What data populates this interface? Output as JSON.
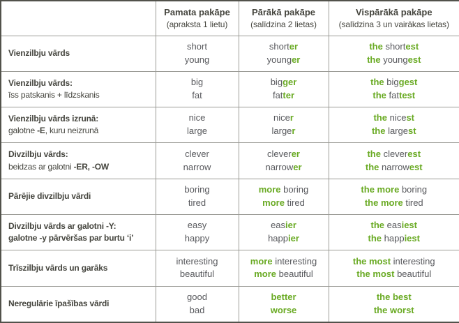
{
  "colors": {
    "green": "#69aa23",
    "label_text": "#45453e",
    "value_text": "#57585c",
    "border_outer": "#52524b",
    "border_inner": "#9b9b96",
    "background": "#ffffff"
  },
  "header": {
    "corner": "",
    "columns": [
      {
        "title": "Pamata pakāpe",
        "subtitle": "(apraksta 1 lietu)"
      },
      {
        "title": "Pārākā pakāpe",
        "subtitle": "(salīdzina 2 lietas)"
      },
      {
        "title": "Vispārākā pakāpe",
        "subtitle": "(salīdzina 3 un vairākas lietas)"
      }
    ]
  },
  "rows": [
    {
      "label_lines": [
        [
          {
            "t": "Vienzilbju vārds",
            "b": true
          }
        ]
      ],
      "cells": [
        [
          [
            {
              "t": "short"
            }
          ],
          [
            {
              "t": "young"
            }
          ]
        ],
        [
          [
            {
              "t": "short"
            },
            {
              "t": "er",
              "g": true
            }
          ],
          [
            {
              "t": "young"
            },
            {
              "t": "er",
              "g": true
            }
          ]
        ],
        [
          [
            {
              "t": "the ",
              "g": true
            },
            {
              "t": "short"
            },
            {
              "t": "est",
              "g": true
            }
          ],
          [
            {
              "t": "the ",
              "g": true
            },
            {
              "t": "young"
            },
            {
              "t": "est",
              "g": true
            }
          ]
        ]
      ]
    },
    {
      "label_lines": [
        [
          {
            "t": "Vienzilbju vārds:",
            "b": true
          }
        ],
        [
          {
            "t": "īss patskanis + līdzskanis"
          }
        ]
      ],
      "cells": [
        [
          [
            {
              "t": "big"
            }
          ],
          [
            {
              "t": "fat"
            }
          ]
        ],
        [
          [
            {
              "t": "big"
            },
            {
              "t": "ger",
              "g": true
            }
          ],
          [
            {
              "t": "fat"
            },
            {
              "t": "ter",
              "g": true
            }
          ]
        ],
        [
          [
            {
              "t": "the ",
              "g": true
            },
            {
              "t": "big"
            },
            {
              "t": "gest",
              "g": true
            }
          ],
          [
            {
              "t": "the ",
              "g": true
            },
            {
              "t": "fat"
            },
            {
              "t": "test",
              "g": true
            }
          ]
        ]
      ]
    },
    {
      "label_lines": [
        [
          {
            "t": "Vienzilbju vārds izrunā:",
            "b": true
          }
        ],
        [
          {
            "t": "galotne "
          },
          {
            "t": "-E",
            "b": true
          },
          {
            "t": ", kuru neizrunā"
          }
        ]
      ],
      "cells": [
        [
          [
            {
              "t": "nice"
            }
          ],
          [
            {
              "t": "large"
            }
          ]
        ],
        [
          [
            {
              "t": "nice"
            },
            {
              "t": "r",
              "g": true
            }
          ],
          [
            {
              "t": "large"
            },
            {
              "t": "r",
              "g": true
            }
          ]
        ],
        [
          [
            {
              "t": "the ",
              "g": true
            },
            {
              "t": "nice"
            },
            {
              "t": "st",
              "g": true
            }
          ],
          [
            {
              "t": "the ",
              "g": true
            },
            {
              "t": "large"
            },
            {
              "t": "st",
              "g": true
            }
          ]
        ]
      ]
    },
    {
      "label_lines": [
        [
          {
            "t": "Divzilbju vārds:",
            "b": true
          }
        ],
        [
          {
            "t": "beidzas ar galotni "
          },
          {
            "t": "-ER, -OW",
            "b": true
          }
        ]
      ],
      "cells": [
        [
          [
            {
              "t": "clever"
            }
          ],
          [
            {
              "t": "narrow"
            }
          ]
        ],
        [
          [
            {
              "t": "clever"
            },
            {
              "t": "er",
              "g": true
            }
          ],
          [
            {
              "t": "narrow"
            },
            {
              "t": "er",
              "g": true
            }
          ]
        ],
        [
          [
            {
              "t": "the ",
              "g": true
            },
            {
              "t": "clever"
            },
            {
              "t": "est",
              "g": true
            }
          ],
          [
            {
              "t": "the ",
              "g": true
            },
            {
              "t": "narrow"
            },
            {
              "t": "est",
              "g": true
            }
          ]
        ]
      ]
    },
    {
      "label_lines": [
        [
          {
            "t": "Pārējie divzilbju vārdi",
            "b": true
          }
        ]
      ],
      "cells": [
        [
          [
            {
              "t": "boring"
            }
          ],
          [
            {
              "t": "tired"
            }
          ]
        ],
        [
          [
            {
              "t": "more ",
              "g": true
            },
            {
              "t": "boring"
            }
          ],
          [
            {
              "t": "more ",
              "g": true
            },
            {
              "t": "tired"
            }
          ]
        ],
        [
          [
            {
              "t": "the more ",
              "g": true
            },
            {
              "t": "boring"
            }
          ],
          [
            {
              "t": "the more ",
              "g": true
            },
            {
              "t": "tired"
            }
          ]
        ]
      ]
    },
    {
      "label_lines": [
        [
          {
            "t": "Divzilbju vārds ar galotni -Y:",
            "b": true
          }
        ],
        [
          {
            "t": "galotne -y pārvēršas par burtu ‘i’",
            "b": true
          }
        ]
      ],
      "cells": [
        [
          [
            {
              "t": "easy"
            }
          ],
          [
            {
              "t": "happy"
            }
          ]
        ],
        [
          [
            {
              "t": "eas"
            },
            {
              "t": "ier",
              "g": true
            }
          ],
          [
            {
              "t": "happ"
            },
            {
              "t": "ier",
              "g": true
            }
          ]
        ],
        [
          [
            {
              "t": "the ",
              "g": true
            },
            {
              "t": "eas"
            },
            {
              "t": "iest",
              "g": true
            }
          ],
          [
            {
              "t": "the ",
              "g": true
            },
            {
              "t": "happ"
            },
            {
              "t": "iest",
              "g": true
            }
          ]
        ]
      ]
    },
    {
      "label_lines": [
        [
          {
            "t": "Trīszilbju vārds un garāks",
            "b": true
          }
        ]
      ],
      "cells": [
        [
          [
            {
              "t": "interesting"
            }
          ],
          [
            {
              "t": "beautiful"
            }
          ]
        ],
        [
          [
            {
              "t": "more ",
              "g": true
            },
            {
              "t": "interesting"
            }
          ],
          [
            {
              "t": "more ",
              "g": true
            },
            {
              "t": "beautiful"
            }
          ]
        ],
        [
          [
            {
              "t": "the most ",
              "g": true
            },
            {
              "t": "interesting"
            }
          ],
          [
            {
              "t": "the most ",
              "g": true
            },
            {
              "t": "beautiful"
            }
          ]
        ]
      ]
    },
    {
      "label_lines": [
        [
          {
            "t": "Neregulārie īpašības vārdi",
            "b": true
          }
        ]
      ],
      "cells": [
        [
          [
            {
              "t": "good"
            }
          ],
          [
            {
              "t": "bad"
            }
          ]
        ],
        [
          [
            {
              "t": "better",
              "g": true
            }
          ],
          [
            {
              "t": "worse",
              "g": true
            }
          ]
        ],
        [
          [
            {
              "t": "the best",
              "g": true
            }
          ],
          [
            {
              "t": "the worst",
              "g": true
            }
          ]
        ]
      ]
    }
  ]
}
